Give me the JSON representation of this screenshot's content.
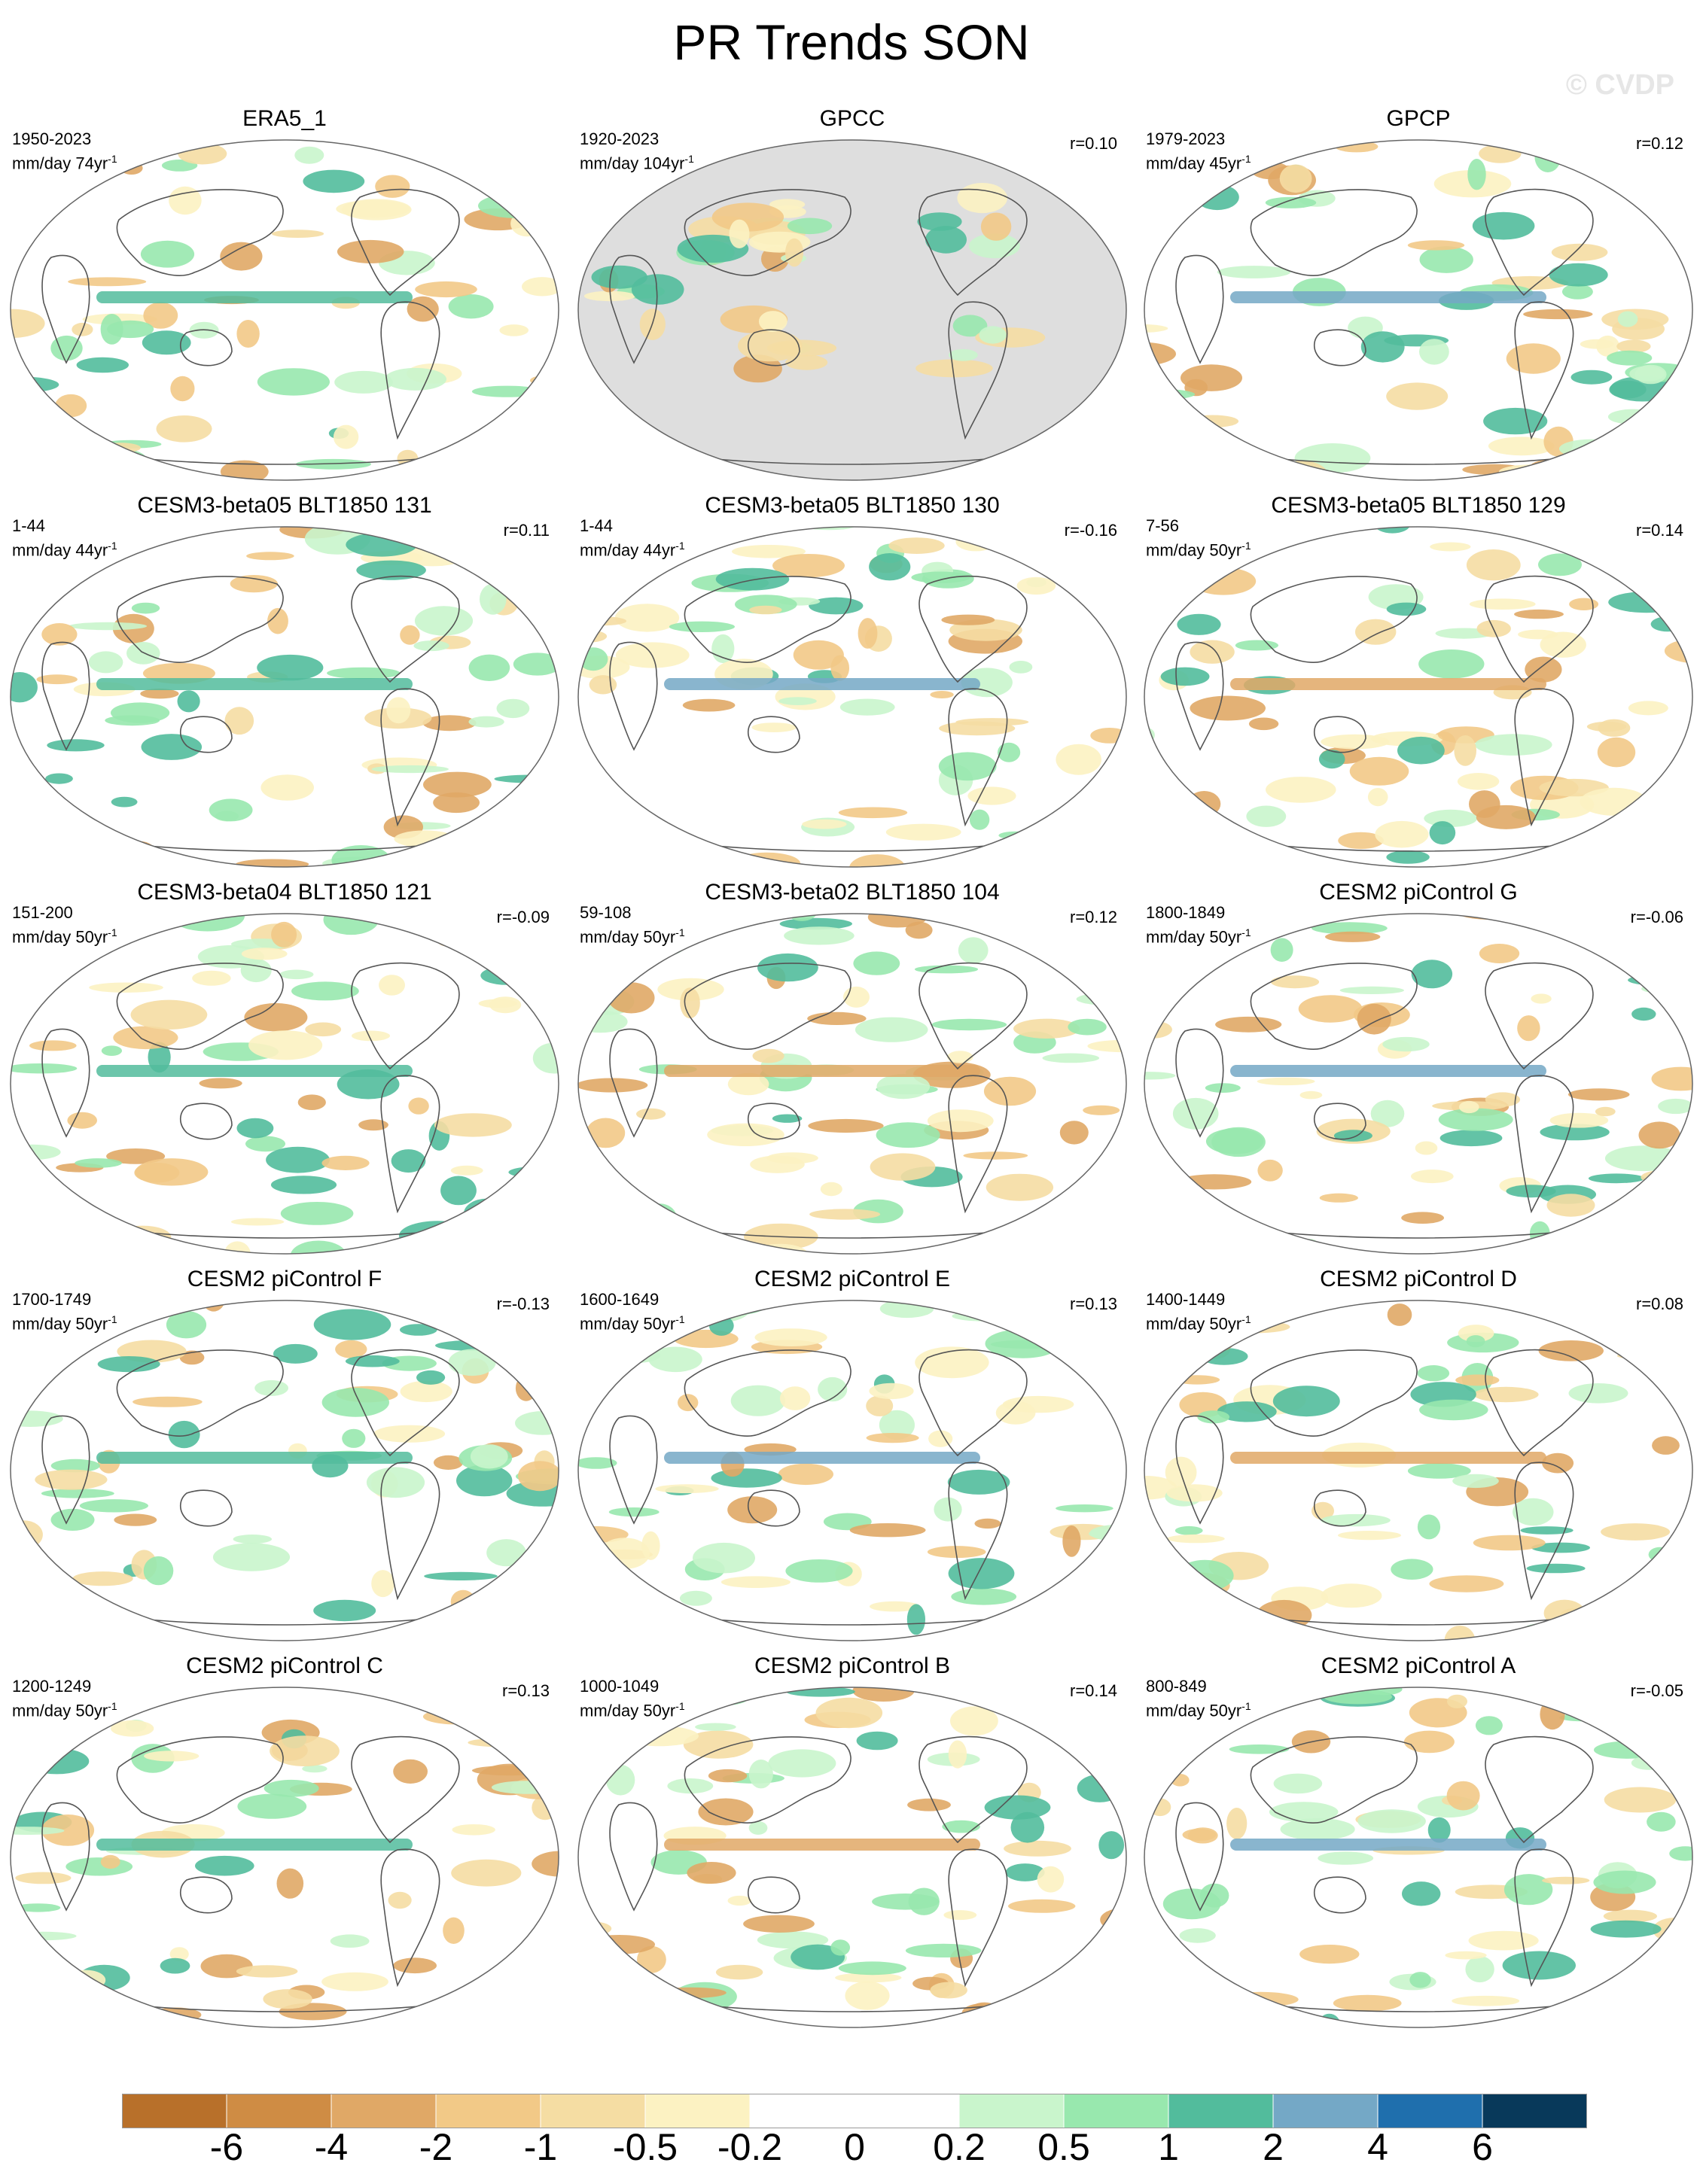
{
  "title": "PR Trends SON",
  "watermark": "© CVDP",
  "units_prefix": "mm/day ",
  "units_suffix": "yr",
  "units_exponent": "-1",
  "panels": [
    {
      "title": "ERA5_1",
      "years": "1950-2023",
      "span": "74",
      "corr": ""
    },
    {
      "title": "GPCC",
      "years": "1920-2023",
      "span": "104",
      "corr": "r=0.10"
    },
    {
      "title": "GPCP",
      "years": "1979-2023",
      "span": "45",
      "corr": "r=0.12"
    },
    {
      "title": "CESM3-beta05 BLT1850 131",
      "years": "1-44",
      "span": "44",
      "corr": "r=0.11"
    },
    {
      "title": "CESM3-beta05 BLT1850 130",
      "years": "1-44",
      "span": "44",
      "corr": "r=-0.16"
    },
    {
      "title": "CESM3-beta05 BLT1850 129",
      "years": "7-56",
      "span": "50",
      "corr": "r=0.14"
    },
    {
      "title": "CESM3-beta04 BLT1850 121",
      "years": "151-200",
      "span": "50",
      "corr": "r=-0.09"
    },
    {
      "title": "CESM3-beta02 BLT1850 104",
      "years": "59-108",
      "span": "50",
      "corr": "r=0.12"
    },
    {
      "title": "CESM2 piControl G",
      "years": "1800-1849",
      "span": "50",
      "corr": "r=-0.06"
    },
    {
      "title": "CESM2 piControl F",
      "years": "1700-1749",
      "span": "50",
      "corr": "r=-0.13"
    },
    {
      "title": "CESM2 piControl E",
      "years": "1600-1649",
      "span": "50",
      "corr": "r=0.13"
    },
    {
      "title": "CESM2 piControl D",
      "years": "1400-1449",
      "span": "50",
      "corr": "r=0.08"
    },
    {
      "title": "CESM2 piControl C",
      "years": "1200-1249",
      "span": "50",
      "corr": "r=0.13"
    },
    {
      "title": "CESM2 piControl B",
      "years": "1000-1049",
      "span": "50",
      "corr": "r=0.14"
    },
    {
      "title": "CESM2 piControl A",
      "years": "800-849",
      "span": "50",
      "corr": "r=-0.05"
    }
  ],
  "colorbar": {
    "colors": [
      "#b8702a",
      "#cf8c44",
      "#e0a866",
      "#f2c987",
      "#f5dda3",
      "#fcf2c2",
      "#ffffff",
      "#ffffff",
      "#c9f5cc",
      "#98e8ae",
      "#52bc9c",
      "#74a8c6",
      "#1f6fad",
      "#08395a"
    ],
    "labels": [
      "-6",
      "-4",
      "-2",
      "-1",
      "-0.5",
      "-0.2",
      "0",
      "0.2",
      "0.5",
      "1",
      "2",
      "4",
      "6"
    ]
  }
}
